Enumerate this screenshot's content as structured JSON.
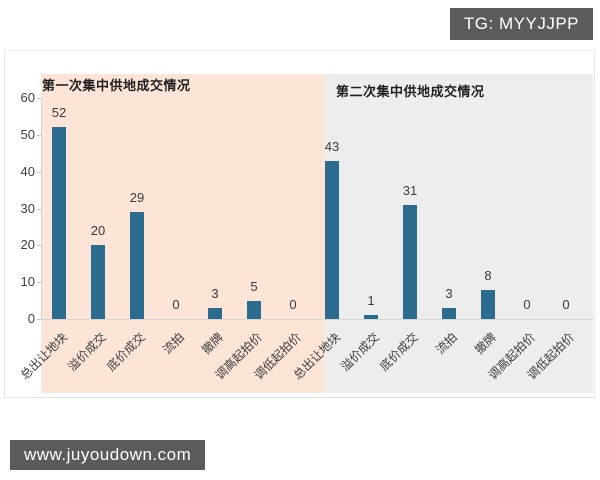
{
  "watermarks": {
    "tg_badge": "TG: MYYJJPP",
    "site_badge": "www.juyoudown.com"
  },
  "colors": {
    "bar": "#2a6b8f",
    "first_round_bg": "#fce4d6",
    "second_round_bg": "#ededed",
    "badge_bg": "#5b5b5b",
    "badge_text": "#ffffff"
  },
  "chart_data": {
    "type": "bar",
    "categories": [
      "总出让地块",
      "溢价成交",
      "底价成交",
      "流拍",
      "撤牌",
      "调高起拍价",
      "调低起拍价"
    ],
    "groups": [
      {
        "title": "第一次集中供地成交情况",
        "values": [
          52,
          20,
          29,
          0,
          3,
          5,
          0
        ]
      },
      {
        "title": "第二次集中供地成交情况",
        "values": [
          43,
          1,
          31,
          3,
          8,
          0,
          0
        ]
      }
    ],
    "ylim": [
      0,
      60
    ],
    "yticks": [
      0,
      10,
      20,
      30,
      40,
      50,
      60
    ],
    "grid": false,
    "legend": false,
    "value_labels": true
  }
}
